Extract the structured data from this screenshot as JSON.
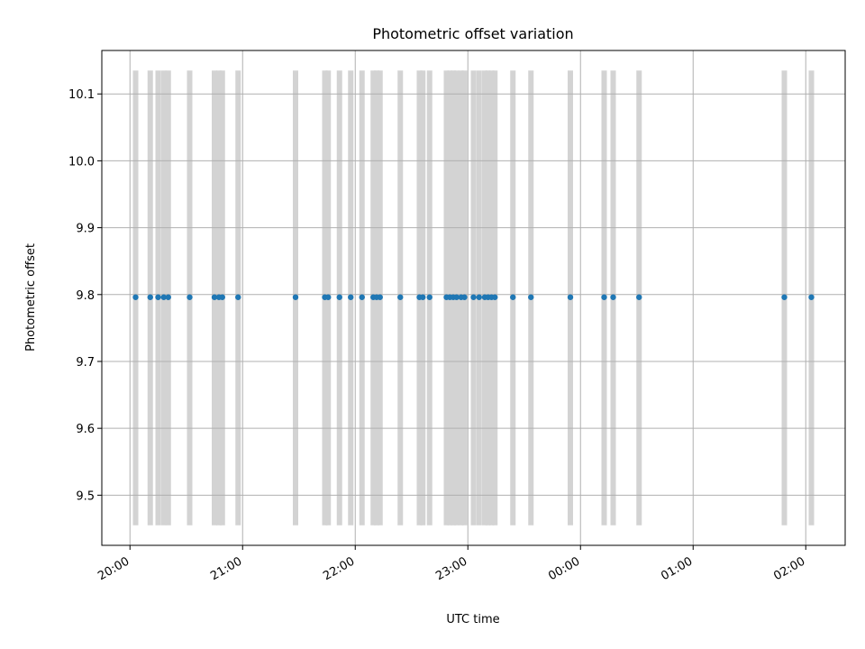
{
  "chart_data": {
    "type": "scatter",
    "title": "Photometric offset variation",
    "xlabel": "UTC time",
    "ylabel": "Photometric offset",
    "x_tick_labels": [
      "20:00",
      "21:00",
      "22:00",
      "23:00",
      "00:00",
      "01:00",
      "02:00"
    ],
    "x_tick_hours": [
      20,
      21,
      22,
      23,
      24,
      25,
      26
    ],
    "y_ticks": [
      9.5,
      9.6,
      9.7,
      9.8,
      9.9,
      10.0,
      10.1
    ],
    "y_tick_labels": [
      "9.5",
      "9.6",
      "9.7",
      "9.8",
      "9.9",
      "10.0",
      "10.1"
    ],
    "xlim_hours": [
      19.75,
      26.35
    ],
    "ylim": [
      9.425,
      10.165
    ],
    "grid": true,
    "band_range": [
      9.455,
      10.135
    ],
    "colors": {
      "points": "#1f77b4",
      "bands": "#d3d3d3",
      "grid": "#b0b0b0"
    },
    "series": [
      {
        "x_hours": [
          20.05,
          20.18,
          20.25,
          20.3,
          20.34,
          20.53,
          20.75,
          20.79,
          20.82,
          20.96,
          21.47,
          21.73,
          21.76,
          21.86,
          21.96,
          22.06,
          22.16,
          22.19,
          22.22,
          22.4,
          22.57,
          22.6,
          22.66,
          22.81,
          22.84,
          22.87,
          22.9,
          22.94,
          22.97,
          23.05,
          23.1,
          23.15,
          23.18,
          23.21,
          23.24,
          23.4,
          23.56,
          23.91,
          24.21,
          24.29,
          24.52,
          25.81,
          26.05
        ],
        "y": [
          9.796,
          9.796,
          9.796,
          9.796,
          9.796,
          9.796,
          9.796,
          9.796,
          9.796,
          9.796,
          9.796,
          9.796,
          9.796,
          9.796,
          9.796,
          9.796,
          9.796,
          9.796,
          9.796,
          9.796,
          9.796,
          9.796,
          9.796,
          9.796,
          9.796,
          9.796,
          9.796,
          9.796,
          9.796,
          9.796,
          9.796,
          9.796,
          9.796,
          9.796,
          9.796,
          9.796,
          9.796,
          9.796,
          9.796,
          9.796,
          9.796,
          9.796,
          9.796
        ]
      }
    ]
  }
}
